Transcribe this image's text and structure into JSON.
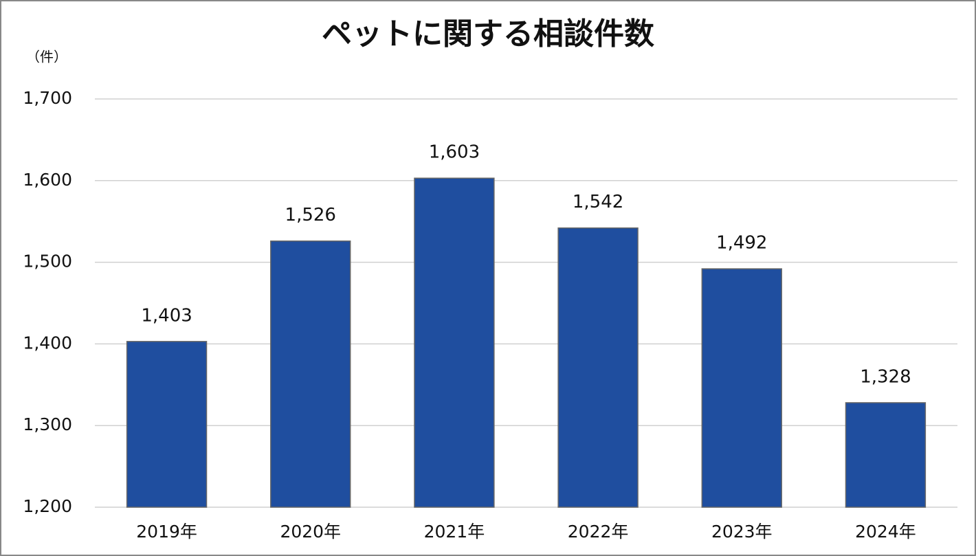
{
  "chart_data": {
    "type": "bar",
    "title": "ペットに関する相談件数",
    "y_label": "（件）",
    "categories": [
      "2019年",
      "2020年",
      "2021年",
      "2022年",
      "2023年",
      "2024年"
    ],
    "values": [
      1403,
      1526,
      1603,
      1542,
      1492,
      1328
    ],
    "value_labels": [
      "1,403",
      "1,526",
      "1,603",
      "1,542",
      "1,492",
      "1,328"
    ],
    "color": "#1f4e9f",
    "ylim": [
      1200,
      1700
    ],
    "yticks": [
      {
        "value": 1200,
        "label": "1,200"
      },
      {
        "value": 1300,
        "label": "1,300"
      },
      {
        "value": 1400,
        "label": "1,400"
      },
      {
        "value": 1500,
        "label": "1,500"
      },
      {
        "value": 1600,
        "label": "1,600"
      },
      {
        "value": 1700,
        "label": "1,700"
      }
    ],
    "grid": true
  }
}
